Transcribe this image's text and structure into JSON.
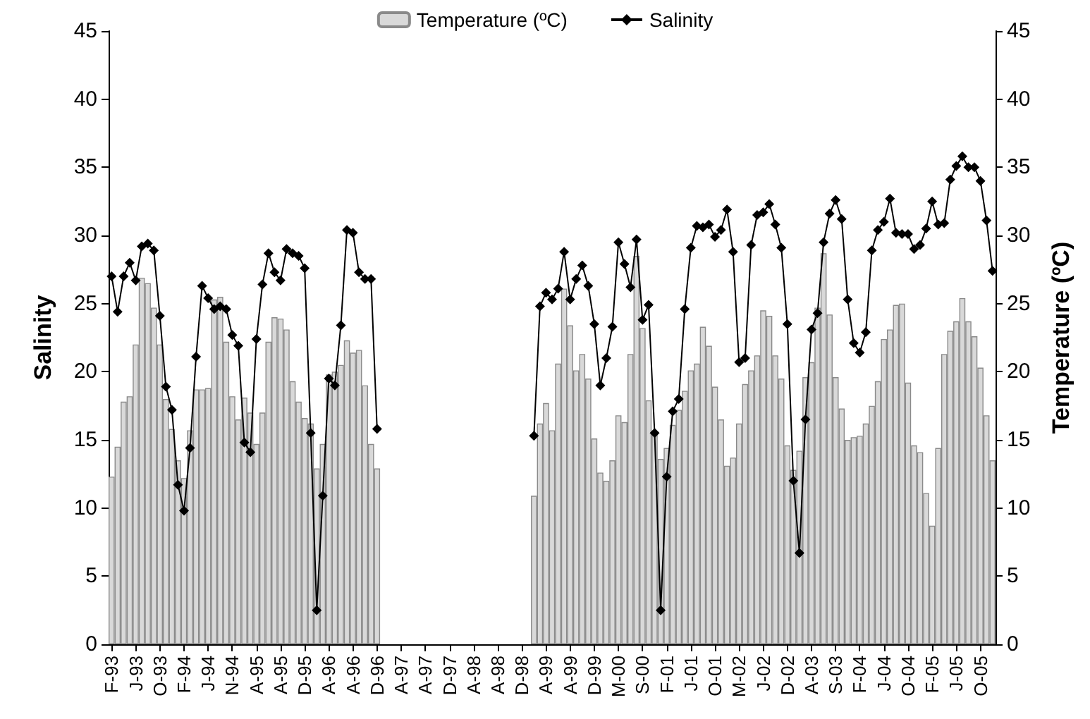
{
  "chart_data": {
    "type": "bar",
    "ylabel": "Salinity",
    "y2label": "Temperature (ºC)",
    "legend": "top",
    "marker": "diamond",
    "ylim": [
      0,
      45
    ],
    "yticks": [
      0,
      5,
      10,
      15,
      20,
      25,
      30,
      35,
      40,
      45
    ],
    "y2lim": [
      0,
      45
    ],
    "y2ticks": [
      0,
      5,
      10,
      15,
      20,
      25,
      30,
      35,
      40,
      45
    ],
    "categories": [
      "F-93",
      null,
      null,
      null,
      "J-93",
      null,
      null,
      null,
      "O-93",
      null,
      null,
      null,
      "F-94",
      null,
      null,
      null,
      "J-94",
      null,
      null,
      null,
      "N-94",
      null,
      null,
      null,
      "A-95",
      null,
      null,
      null,
      "A-95",
      null,
      null,
      null,
      "D-95",
      null,
      null,
      null,
      "A-96",
      null,
      null,
      null,
      "A-96",
      null,
      null,
      null,
      "D-96",
      null,
      null,
      null,
      "A-97",
      null,
      null,
      null,
      "A-97",
      null,
      null,
      null,
      "D-97",
      null,
      null,
      null,
      "A-98",
      null,
      null,
      null,
      "A-98",
      null,
      null,
      null,
      "D-98",
      null,
      null,
      null,
      "A-99",
      null,
      null,
      null,
      "A-99",
      null,
      null,
      null,
      "D-99",
      null,
      null,
      null,
      "M-00",
      null,
      null,
      null,
      "S-00",
      null,
      null,
      null,
      "F-01",
      null,
      null,
      null,
      "J-01",
      null,
      null,
      null,
      "O-01",
      null,
      null,
      null,
      "M-02",
      null,
      null,
      null,
      "J-02",
      null,
      null,
      null,
      "D-02",
      null,
      null,
      null,
      "A-03",
      null,
      null,
      null,
      "S-03",
      null,
      null,
      null,
      "F-04",
      null,
      null,
      null,
      "J-04",
      null,
      null,
      null,
      "O-04",
      null,
      null,
      null,
      "F-05",
      null,
      null,
      null,
      "J-05",
      null,
      null,
      null,
      "O-05",
      null,
      null
    ],
    "series": [
      {
        "name": "Temperature (ºC)",
        "color": "#d9d9d9",
        "values": [
          12.3,
          14.5,
          17.8,
          18.2,
          22.0,
          26.9,
          26.5,
          24.7,
          22.0,
          18.0,
          15.8,
          13.5,
          12.2,
          15.7,
          18.7,
          18.7,
          18.8,
          25.3,
          25.5,
          22.2,
          18.2,
          16.5,
          18.1,
          17.0,
          14.7,
          17.0,
          22.2,
          24.0,
          23.9,
          23.1,
          19.3,
          17.8,
          16.6,
          16.2,
          12.9,
          14.7,
          19.8,
          20.0,
          20.5,
          22.3,
          21.4,
          21.6,
          19.0,
          14.7,
          12.9,
          null,
          null,
          null,
          null,
          null,
          null,
          null,
          null,
          null,
          null,
          null,
          null,
          null,
          null,
          null,
          null,
          null,
          null,
          null,
          null,
          null,
          null,
          null,
          null,
          null,
          10.9,
          16.2,
          17.7,
          15.7,
          20.6,
          26.1,
          23.4,
          20.1,
          21.3,
          19.5,
          15.1,
          12.6,
          12.0,
          13.5,
          16.8,
          16.3,
          21.3,
          28.5,
          23.2,
          17.9,
          15.5,
          13.6,
          14.4,
          16.1,
          17.2,
          18.6,
          20.1,
          20.6,
          23.3,
          21.9,
          18.9,
          16.5,
          13.1,
          13.7,
          16.2,
          19.1,
          20.1,
          21.2,
          24.5,
          24.1,
          21.2,
          19.5,
          14.6,
          12.8,
          14.2,
          19.6,
          20.7,
          24.7,
          28.7,
          24.2,
          19.6,
          17.3,
          15.0,
          15.2,
          15.3,
          16.2,
          17.5,
          19.3,
          22.4,
          23.1,
          24.9,
          25.0,
          19.2,
          14.6,
          14.1,
          11.1,
          8.7,
          14.4,
          21.3,
          23.0,
          23.7,
          25.4,
          23.7,
          22.6,
          20.3,
          16.8,
          13.5
        ]
      },
      {
        "name": "Salinity",
        "type": "line",
        "color": "#000000",
        "values": [
          27.0,
          24.4,
          27.0,
          28.0,
          26.7,
          29.2,
          29.4,
          28.9,
          24.1,
          18.9,
          17.2,
          11.7,
          9.8,
          14.4,
          21.1,
          26.3,
          25.4,
          24.6,
          24.8,
          24.6,
          22.7,
          21.9,
          14.8,
          14.1,
          22.4,
          26.4,
          28.7,
          27.3,
          26.7,
          29.0,
          28.7,
          28.5,
          27.6,
          15.5,
          2.5,
          10.9,
          19.5,
          19.0,
          23.4,
          30.4,
          30.2,
          27.3,
          26.8,
          26.8,
          15.8,
          null,
          null,
          null,
          null,
          null,
          null,
          null,
          null,
          null,
          null,
          null,
          null,
          null,
          null,
          null,
          null,
          null,
          null,
          null,
          null,
          null,
          null,
          null,
          null,
          null,
          15.3,
          24.8,
          25.8,
          25.3,
          26.1,
          28.8,
          25.3,
          26.8,
          27.8,
          26.3,
          23.5,
          19.0,
          21.0,
          23.3,
          29.5,
          27.9,
          26.2,
          29.7,
          23.8,
          24.9,
          15.5,
          2.5,
          12.3,
          17.1,
          18.0,
          24.6,
          29.1,
          30.7,
          30.6,
          30.8,
          29.9,
          30.4,
          31.9,
          28.8,
          20.7,
          21.0,
          29.3,
          31.5,
          31.7,
          32.3,
          30.8,
          29.1,
          23.5,
          12.0,
          6.7,
          16.5,
          23.1,
          24.3,
          29.5,
          31.6,
          32.6,
          31.2,
          25.3,
          22.1,
          21.4,
          22.9,
          28.9,
          30.4,
          31.0,
          32.7,
          30.2,
          30.1,
          30.1,
          29.0,
          29.3,
          30.5,
          32.5,
          30.8,
          30.9,
          34.1,
          35.1,
          35.8,
          35.0,
          35.0,
          34.0,
          31.1,
          27.4
        ]
      }
    ]
  }
}
